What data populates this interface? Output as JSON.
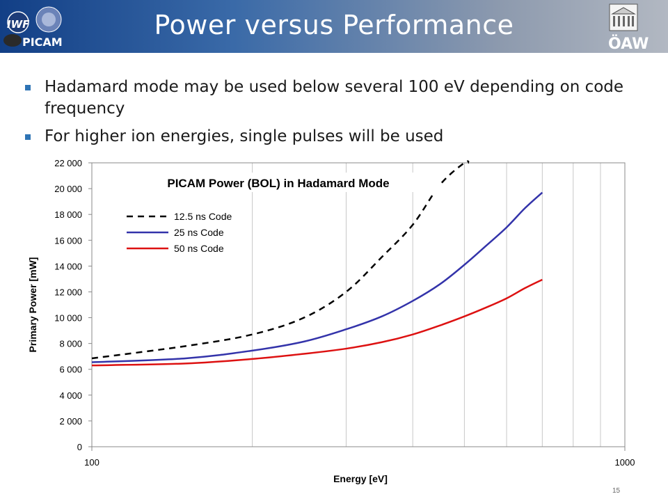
{
  "slide": {
    "title": "Power versus Performance",
    "logo_left_text": "IWF",
    "logo_left_sub": "PICAM",
    "logo_right_text": "ÖAW",
    "bullets": [
      "Hadamard mode may be used below several 100 eV depending on code frequency",
      "For higher ion energies, single pulses will be used"
    ],
    "page_number": "15"
  },
  "chart_data": {
    "type": "line",
    "title": "PICAM Power (BOL) in Hadamard Mode",
    "xlabel": "Energy [eV]",
    "ylabel": "Primary Power [mW]",
    "x_scale": "log",
    "xlim": [
      100,
      1000
    ],
    "ylim": [
      0,
      22000
    ],
    "x_ticks": [
      100,
      1000
    ],
    "x_tick_labels": [
      "100",
      "1000"
    ],
    "y_ticks": [
      0,
      2000,
      4000,
      6000,
      8000,
      10000,
      12000,
      14000,
      16000,
      18000,
      20000,
      22000
    ],
    "y_tick_labels": [
      "0",
      "2 000",
      "4 000",
      "6 000",
      "8 000",
      "10 000",
      "12 000",
      "14 000",
      "16 000",
      "18 000",
      "20 000",
      "22 000"
    ],
    "grid": "vertical",
    "legend_position": "top-left",
    "series": [
      {
        "name": "12.5 ns Code",
        "color": "#000000",
        "dash": true,
        "x": [
          100,
          150,
          200,
          250,
          300,
          350,
          400,
          450,
          500,
          510
        ],
        "y": [
          6850,
          7800,
          8700,
          10000,
          12000,
          14700,
          17200,
          20300,
          22000,
          22000
        ]
      },
      {
        "name": "25 ns Code",
        "color": "#3333aa",
        "dash": false,
        "x": [
          100,
          150,
          200,
          250,
          300,
          350,
          400,
          450,
          500,
          550,
          600,
          650,
          700
        ],
        "y": [
          6550,
          6850,
          7450,
          8150,
          9100,
          10100,
          11300,
          12600,
          14100,
          15600,
          17000,
          18500,
          19700
        ]
      },
      {
        "name": "50 ns Code",
        "color": "#dd1111",
        "dash": false,
        "x": [
          100,
          150,
          200,
          250,
          300,
          350,
          400,
          450,
          500,
          550,
          600,
          650,
          700
        ],
        "y": [
          6300,
          6450,
          6800,
          7200,
          7600,
          8100,
          8700,
          9400,
          10100,
          10800,
          11500,
          12300,
          12950
        ]
      }
    ]
  }
}
